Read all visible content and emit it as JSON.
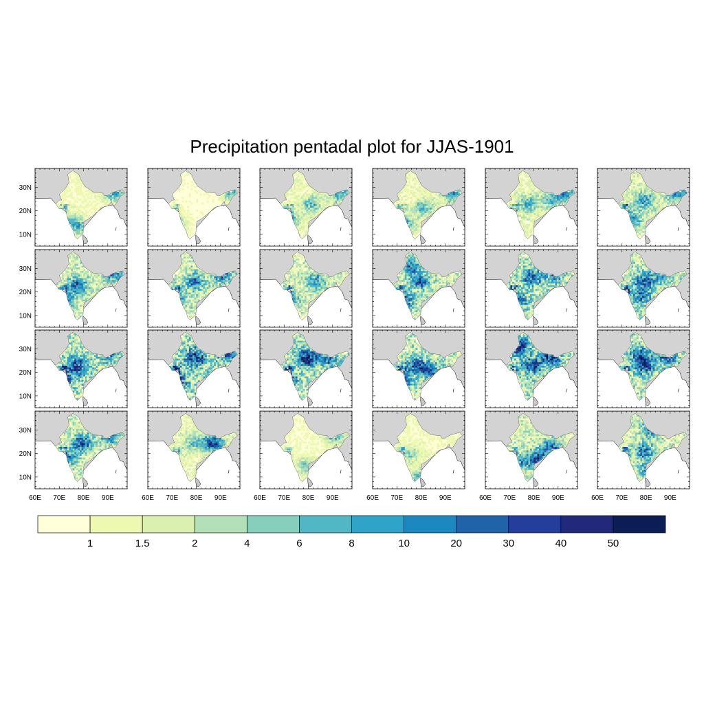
{
  "title": "Precipitation pentadal plot for JJAS-1901",
  "grid": {
    "rows": 4,
    "cols": 6
  },
  "lat_ticks": [
    "30N",
    "20N",
    "10N"
  ],
  "lon_ticks": [
    "60E",
    "70E",
    "80E",
    "90E"
  ],
  "colors": {
    "land_outside": "#d3d3d3",
    "ocean": "#ffffff",
    "frame": "#000000"
  },
  "colorbar": {
    "labels": [
      "1",
      "1.5",
      "2",
      "4",
      "6",
      "8",
      "10",
      "20",
      "30",
      "40",
      "50"
    ],
    "colors": [
      "#ffffd9",
      "#edf8b1",
      "#d9f0b0",
      "#b3e0b8",
      "#86cfbd",
      "#52b7c4",
      "#30a3c9",
      "#1d88c0",
      "#2163a8",
      "#243e9c",
      "#22287a",
      "#0b1d55"
    ]
  },
  "panels": [
    {
      "wet": 0.2,
      "hot": [
        [
          0.45,
          0.72,
          0.5
        ],
        [
          0.3,
          0.68,
          0.35
        ],
        [
          0.85,
          0.3,
          0.6
        ]
      ]
    },
    {
      "wet": 0.12,
      "hot": [
        [
          0.3,
          0.7,
          0.45
        ],
        [
          0.9,
          0.3,
          0.5
        ]
      ]
    },
    {
      "wet": 0.28,
      "hot": [
        [
          0.3,
          0.65,
          0.55
        ],
        [
          0.55,
          0.45,
          0.4
        ],
        [
          0.85,
          0.3,
          0.5
        ]
      ]
    },
    {
      "wet": 0.25,
      "hot": [
        [
          0.35,
          0.7,
          0.45
        ],
        [
          0.55,
          0.5,
          0.45
        ],
        [
          0.85,
          0.3,
          0.6
        ]
      ]
    },
    {
      "wet": 0.3,
      "hot": [
        [
          0.45,
          0.45,
          0.45
        ],
        [
          0.7,
          0.4,
          0.4
        ],
        [
          0.85,
          0.3,
          0.55
        ]
      ]
    },
    {
      "wet": 0.38,
      "hot": [
        [
          0.5,
          0.4,
          0.5
        ],
        [
          0.35,
          0.65,
          0.5
        ],
        [
          0.85,
          0.3,
          0.6
        ]
      ]
    },
    {
      "wet": 0.45,
      "hot": [
        [
          0.45,
          0.45,
          0.6
        ],
        [
          0.3,
          0.65,
          0.6
        ],
        [
          0.85,
          0.3,
          0.5
        ]
      ]
    },
    {
      "wet": 0.5,
      "hot": [
        [
          0.25,
          0.65,
          0.7
        ],
        [
          0.5,
          0.4,
          0.5
        ],
        [
          0.8,
          0.3,
          0.6
        ]
      ]
    },
    {
      "wet": 0.42,
      "hot": [
        [
          0.6,
          0.4,
          0.5
        ],
        [
          0.3,
          0.65,
          0.55
        ]
      ]
    },
    {
      "wet": 0.5,
      "hot": [
        [
          0.5,
          0.4,
          0.6
        ],
        [
          0.4,
          0.2,
          0.5
        ],
        [
          0.35,
          0.65,
          0.5
        ]
      ]
    },
    {
      "wet": 0.55,
      "hot": [
        [
          0.5,
          0.35,
          0.6
        ],
        [
          0.35,
          0.65,
          0.5
        ],
        [
          0.75,
          0.3,
          0.5
        ]
      ]
    },
    {
      "wet": 0.55,
      "hot": [
        [
          0.5,
          0.4,
          0.6
        ],
        [
          0.45,
          0.6,
          0.45
        ],
        [
          0.7,
          0.3,
          0.5
        ]
      ]
    },
    {
      "wet": 0.6,
      "hot": [
        [
          0.45,
          0.45,
          0.7
        ],
        [
          0.3,
          0.65,
          0.6
        ],
        [
          0.8,
          0.3,
          0.5
        ]
      ]
    },
    {
      "wet": 0.65,
      "hot": [
        [
          0.5,
          0.35,
          0.7
        ],
        [
          0.3,
          0.65,
          0.7
        ],
        [
          0.85,
          0.3,
          0.55
        ]
      ]
    },
    {
      "wet": 0.55,
      "hot": [
        [
          0.5,
          0.35,
          0.85
        ],
        [
          0.3,
          0.65,
          0.6
        ],
        [
          0.75,
          0.35,
          0.5
        ]
      ]
    },
    {
      "wet": 0.55,
      "hot": [
        [
          0.45,
          0.45,
          0.6
        ],
        [
          0.6,
          0.5,
          0.55
        ],
        [
          0.3,
          0.65,
          0.5
        ]
      ]
    },
    {
      "wet": 0.6,
      "hot": [
        [
          0.35,
          0.2,
          0.8
        ],
        [
          0.5,
          0.45,
          0.7
        ],
        [
          0.7,
          0.35,
          0.6
        ]
      ]
    },
    {
      "wet": 0.55,
      "hot": [
        [
          0.5,
          0.45,
          0.7
        ],
        [
          0.45,
          0.3,
          0.5
        ],
        [
          0.75,
          0.35,
          0.5
        ]
      ]
    },
    {
      "wet": 0.45,
      "hot": [
        [
          0.5,
          0.4,
          0.7
        ],
        [
          0.35,
          0.6,
          0.45
        ],
        [
          0.8,
          0.3,
          0.55
        ]
      ]
    },
    {
      "wet": 0.3,
      "hot": [
        [
          0.7,
          0.4,
          0.8
        ],
        [
          0.5,
          0.4,
          0.4
        ]
      ]
    },
    {
      "wet": 0.18,
      "hot": [
        [
          0.5,
          0.7,
          0.4
        ],
        [
          0.8,
          0.3,
          0.5
        ]
      ]
    },
    {
      "wet": 0.2,
      "hot": [
        [
          0.5,
          0.85,
          0.45
        ],
        [
          0.4,
          0.55,
          0.3
        ]
      ]
    },
    {
      "wet": 0.45,
      "hot": [
        [
          0.55,
          0.6,
          0.7
        ],
        [
          0.7,
          0.45,
          0.5
        ],
        [
          0.35,
          0.65,
          0.4
        ]
      ]
    },
    {
      "wet": 0.45,
      "hot": [
        [
          0.6,
          0.2,
          0.8
        ],
        [
          0.5,
          0.5,
          0.55
        ],
        [
          0.55,
          0.75,
          0.5
        ]
      ]
    }
  ]
}
